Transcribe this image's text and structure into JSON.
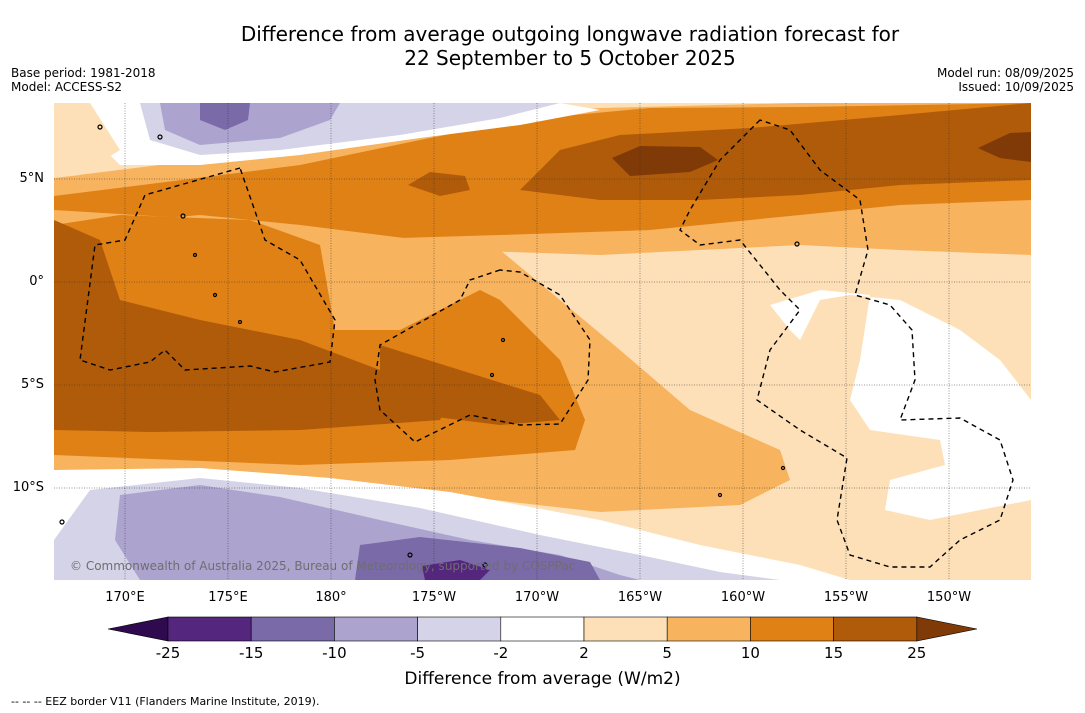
{
  "title_line1": "Difference from average outgoing longwave radiation forecast for",
  "title_line2": "22 September to 5 October 2025",
  "meta_left": {
    "base_period": "Base period: 1981-2018",
    "model": "Model: ACCESS-S2"
  },
  "meta_right": {
    "model_run": "Model run: 08/09/2025",
    "issued": "Issued: 10/09/2025"
  },
  "lat_labels": [
    "5°N",
    "0°",
    "5°S",
    "10°S"
  ],
  "lon_labels": [
    "170°E",
    "175°E",
    "180°",
    "175°W",
    "170°W",
    "165°W",
    "160°W",
    "155°W",
    "150°W"
  ],
  "copyright": "© Commonwealth of Australia 2025, Bureau of Meteorology, supported by COSPPac",
  "colorbar": {
    "ticks": [
      "-25",
      "-15",
      "-10",
      "-5",
      "-2",
      "2",
      "5",
      "10",
      "15",
      "25"
    ],
    "colors": [
      "#2f0a4e",
      "#54267e",
      "#7a6aa8",
      "#aca4cf",
      "#d5d3e7",
      "#ffffff",
      "#fde0b7",
      "#f8b35e",
      "#e08116",
      "#b05b09",
      "#7f3a07"
    ],
    "label": "Difference from average (W/m2)"
  },
  "footnote": "--  --  -- EEZ border V11 (Flanders Marine Institute, 2019)."
}
